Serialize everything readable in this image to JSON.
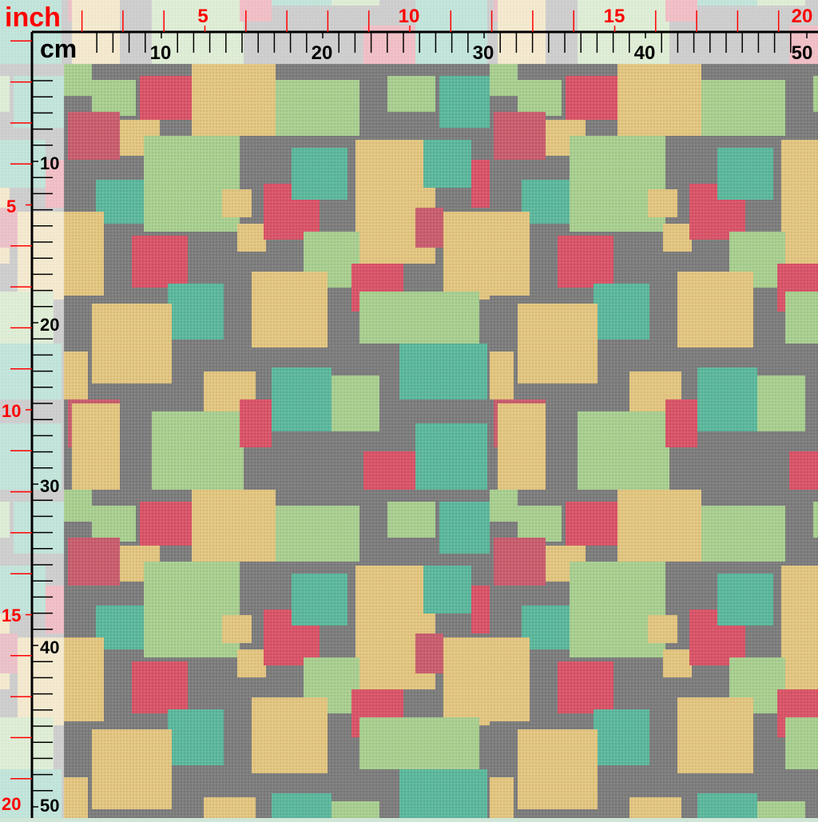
{
  "ruler": {
    "inch_unit": "inch",
    "cm_unit": "cm",
    "inch_labels": [
      "5",
      "10",
      "15",
      "20"
    ],
    "cm_labels": [
      "10",
      "20",
      "30",
      "40",
      "50"
    ],
    "inch_color": "#ff0000",
    "cm_color": "#000000"
  },
  "pattern": {
    "name": "patchwork squares",
    "background_color": "#7d7d7d",
    "colors": {
      "tan": "#e3c680",
      "green": "#a9cf90",
      "teal": "#5cb89d",
      "red": "#da5468",
      "rose": "#c95d6e"
    }
  }
}
